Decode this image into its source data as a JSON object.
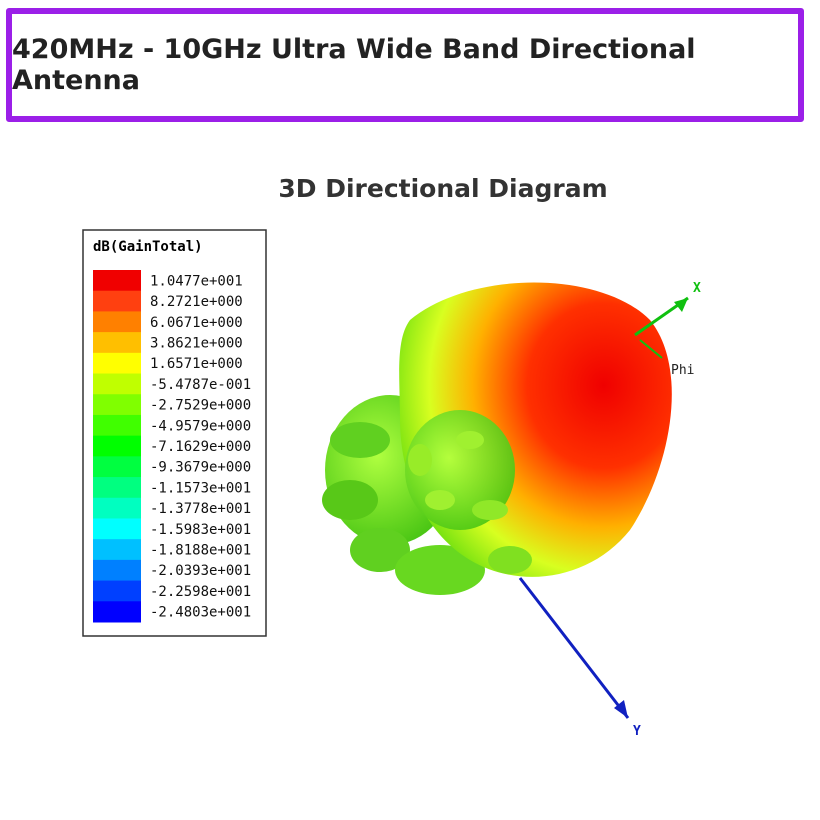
{
  "header": {
    "title": "420MHz - 10GHz Ultra Wide Band Directional Antenna"
  },
  "subtitle": "3D Directional Diagram",
  "legend": {
    "title": "dB(GainTotal)",
    "entries": [
      {
        "label": "1.0477e+001",
        "color": "#f00000"
      },
      {
        "label": "8.2721e+000",
        "color": "#ff4010"
      },
      {
        "label": "6.0671e+000",
        "color": "#ff8000"
      },
      {
        "label": "3.8621e+000",
        "color": "#ffbf00"
      },
      {
        "label": "1.6571e+000",
        "color": "#ffff00"
      },
      {
        "label": "-5.4787e-001",
        "color": "#c0ff00"
      },
      {
        "label": "-2.7529e+000",
        "color": "#80ff00"
      },
      {
        "label": "-4.9579e+000",
        "color": "#40ff00"
      },
      {
        "label": "-7.1629e+000",
        "color": "#00ff00"
      },
      {
        "label": "-9.3679e+000",
        "color": "#00ff40"
      },
      {
        "label": "-1.1573e+001",
        "color": "#00ff80"
      },
      {
        "label": "-1.3778e+001",
        "color": "#00ffc0"
      },
      {
        "label": "-1.5983e+001",
        "color": "#00ffff"
      },
      {
        "label": "-1.8188e+001",
        "color": "#00c0ff"
      },
      {
        "label": "-2.0393e+001",
        "color": "#0080ff"
      },
      {
        "label": "-2.2598e+001",
        "color": "#0040ff"
      },
      {
        "label": "-2.4803e+001",
        "color": "#0000ff"
      }
    ]
  },
  "axes": {
    "x": "X",
    "phi": "Phi",
    "y": "Y"
  }
}
